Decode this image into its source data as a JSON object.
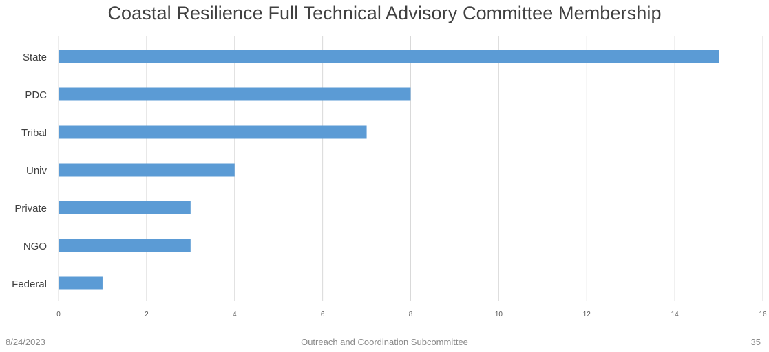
{
  "chart_data": {
    "type": "bar",
    "orientation": "horizontal",
    "title": "Coastal Resilience Full Technical Advisory Committee Membership",
    "xlabel": "",
    "ylabel": "",
    "categories": [
      "State",
      "PDC",
      "Tribal",
      "Univ",
      "Private",
      "NGO",
      "Federal"
    ],
    "values": [
      15,
      8,
      7,
      4,
      3,
      3,
      1
    ],
    "xlim": [
      0,
      16
    ],
    "x_ticks": [
      0,
      2,
      4,
      6,
      8,
      10,
      12,
      14,
      16
    ],
    "grid": "vertical",
    "legend": "none",
    "bar_color": "#5b9bd5",
    "grid_color": "#d9d9d9"
  },
  "footer": {
    "date": "8/24/2023",
    "center": "Outreach and Coordination Subcommittee",
    "page": "35"
  }
}
